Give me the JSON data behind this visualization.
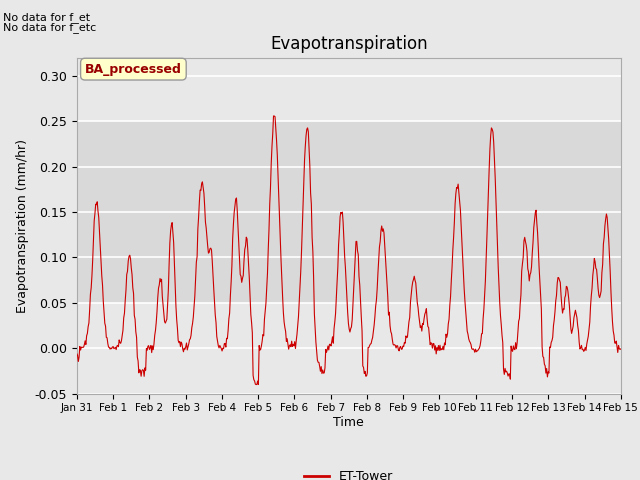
{
  "title": "Evapotranspiration",
  "ylabel": "Evapotranspiration (mm/hr)",
  "xlabel": "Time",
  "note_line1": "No data for f_et",
  "note_line2": "No data for f_etc",
  "box_label": "BA_processed",
  "legend_label": "ET-Tower",
  "legend_color": "#cc0000",
  "ylim": [
    -0.05,
    0.32
  ],
  "yticks": [
    -0.05,
    0.0,
    0.05,
    0.1,
    0.15,
    0.2,
    0.25,
    0.3
  ],
  "bg_color": "#e8e8e8",
  "line_color": "#cc0000",
  "shaded_band_low": 0.05,
  "shaded_band_high": 0.25,
  "xtick_labels": [
    "Jan 31",
    "Feb 1",
    "Feb 2",
    "Feb 3",
    "Feb 4",
    "Feb 5",
    "Feb 6",
    "Feb 7",
    "Feb 8",
    "Feb 9",
    "Feb 10",
    "Feb 11",
    "Feb 12",
    "Feb 13",
    "Feb 14",
    "Feb 15"
  ],
  "xtick_positions": [
    0,
    1,
    2,
    3,
    4,
    5,
    6,
    7,
    8,
    9,
    10,
    11,
    12,
    13,
    14,
    15
  ]
}
